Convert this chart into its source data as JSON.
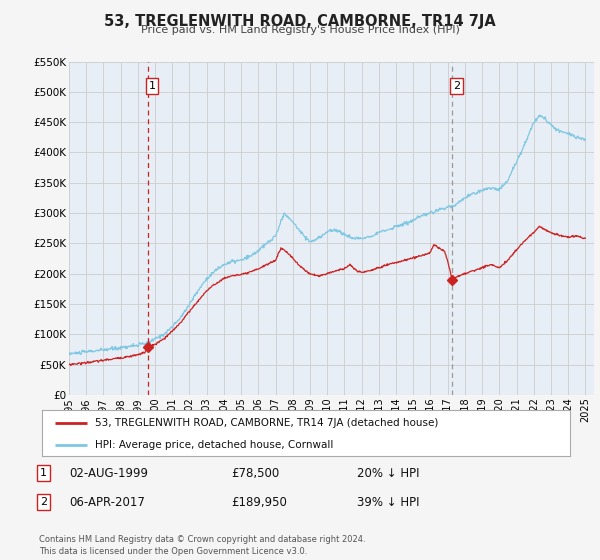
{
  "title": "53, TREGLENWITH ROAD, CAMBORNE, TR14 7JA",
  "subtitle": "Price paid vs. HM Land Registry's House Price Index (HPI)",
  "fig_bg_color": "#f5f5f5",
  "plot_bg_color": "#e8eef5",
  "grid_color": "#cccccc",
  "ylim": [
    0,
    550000
  ],
  "yticks": [
    0,
    50000,
    100000,
    150000,
    200000,
    250000,
    300000,
    350000,
    400000,
    450000,
    500000,
    550000
  ],
  "ytick_labels": [
    "£0",
    "£50K",
    "£100K",
    "£150K",
    "£200K",
    "£250K",
    "£300K",
    "£350K",
    "£400K",
    "£450K",
    "£500K",
    "£550K"
  ],
  "xlim_start": 1995.0,
  "xlim_end": 2025.5,
  "xticks": [
    1995,
    1996,
    1997,
    1998,
    1999,
    2000,
    2001,
    2002,
    2003,
    2004,
    2005,
    2006,
    2007,
    2008,
    2009,
    2010,
    2011,
    2012,
    2013,
    2014,
    2015,
    2016,
    2017,
    2018,
    2019,
    2020,
    2021,
    2022,
    2023,
    2024,
    2025
  ],
  "hpi_color": "#7ec8e3",
  "sale_color": "#cc2222",
  "marker1_x": 1999.583,
  "marker1_y": 78500,
  "marker2_x": 2017.27,
  "marker2_y": 189950,
  "vline1_x": 1999.583,
  "vline2_x": 2017.27,
  "vline1_color": "#cc2222",
  "vline2_color": "#999999",
  "badge_edge_color": "#cc2222",
  "legend_label1": "53, TREGLENWITH ROAD, CAMBORNE, TR14 7JA (detached house)",
  "legend_label2": "HPI: Average price, detached house, Cornwall",
  "note1_num": "1",
  "note1_date": "02-AUG-1999",
  "note1_price": "£78,500",
  "note1_pct": "20% ↓ HPI",
  "note2_num": "2",
  "note2_date": "06-APR-2017",
  "note2_price": "£189,950",
  "note2_pct": "39% ↓ HPI",
  "copyright": "Contains HM Land Registry data © Crown copyright and database right 2024.\nThis data is licensed under the Open Government Licence v3.0."
}
